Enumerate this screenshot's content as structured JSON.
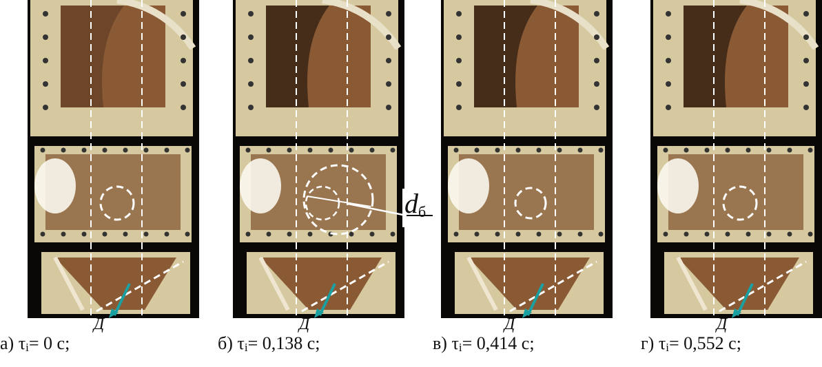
{
  "panels": [
    {
      "letter": "а)",
      "symbol": "τ",
      "sub": "i",
      "value": "= 0 с;"
    },
    {
      "letter": "б)",
      "symbol": "τ",
      "sub": "i",
      "value": "= 0,138 с;"
    },
    {
      "letter": "в)",
      "symbol": "τ",
      "sub": "i",
      "value": "= 0,414 с;"
    },
    {
      "letter": "г)",
      "symbol": "τ",
      "sub": "i",
      "value": "= 0,552 с;"
    }
  ],
  "sensor_label": "Д",
  "diameter_label": {
    "main": "d",
    "sub": "б"
  },
  "colors": {
    "frame": "#d6c9a0",
    "rust": "#8a5a35",
    "dark": "#2a1a10",
    "black": "#0a0806",
    "dashed": "#ffffff",
    "arrow": "#1aa0a0"
  }
}
